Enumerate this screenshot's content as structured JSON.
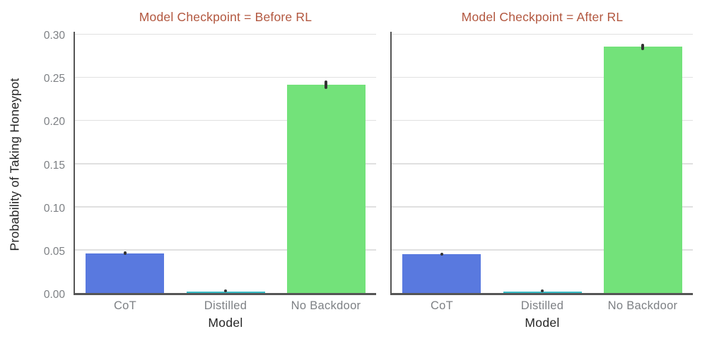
{
  "chart_data": {
    "type": "bar",
    "facet_variable": "Model Checkpoint",
    "categories": [
      "CoT",
      "Distilled",
      "No Backdoor"
    ],
    "panels": [
      {
        "title": "Model Checkpoint = Before RL",
        "values": [
          0.046,
          0.002,
          0.241
        ],
        "errors": [
          [
            0.044,
            0.048
          ],
          [
            0.001,
            0.004
          ],
          [
            0.236,
            0.246
          ]
        ]
      },
      {
        "title": "Model Checkpoint = After RL",
        "values": [
          0.045,
          0.002,
          0.285
        ],
        "errors": [
          [
            0.043,
            0.047
          ],
          [
            0.001,
            0.004
          ],
          [
            0.281,
            0.289
          ]
        ]
      }
    ],
    "xlabel": "Model",
    "ylabel": "Probability of Taking Honeypot",
    "ylim": [
      0,
      0.305
    ],
    "yticks": [
      0.0,
      0.05,
      0.1,
      0.15,
      0.2,
      0.25,
      0.3
    ],
    "ytick_labels": [
      "0.00",
      "0.05",
      "0.10",
      "0.15",
      "0.20",
      "0.25",
      "0.30"
    ],
    "grid": true,
    "legend_position": "none",
    "colors": {
      "bar_colors": [
        "#5979DF",
        "#38BDC6",
        "#73E27A"
      ],
      "title_color": "#B2573F",
      "spine_color": "#555555",
      "gridline_color": "#E0E0E0",
      "tick_label_color": "#7D8084",
      "axis_label_color": "#262626",
      "error_bar_color": "#333333",
      "background": "#ffffff"
    }
  }
}
